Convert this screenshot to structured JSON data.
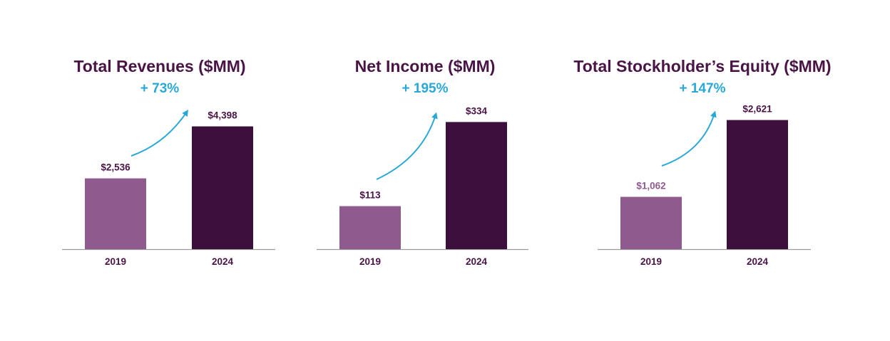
{
  "colors": {
    "title": "#4a1446",
    "growth": "#29a8d8",
    "bar_2019": "#8f5a8e",
    "bar_2024": "#3d0f3d",
    "label_dark": "#4a1446",
    "label_light": "#8f5a8e",
    "axis": "#9a9a9a"
  },
  "chart_data": [
    {
      "type": "bar",
      "title": "Total Revenues ($MM)",
      "growth": "+ 73%",
      "categories": [
        "2019",
        "2024"
      ],
      "values": [
        2536,
        4398
      ],
      "value_labels": [
        "$2,536",
        "$4,398"
      ],
      "xlabel": "",
      "ylabel": "",
      "ylim": [
        0,
        5100
      ]
    },
    {
      "type": "bar",
      "title": "Net Income ($MM)",
      "growth": "+ 195%",
      "categories": [
        "2019",
        "2024"
      ],
      "values": [
        113,
        334
      ],
      "value_labels": [
        "$113",
        "$334"
      ],
      "xlabel": "",
      "ylabel": "",
      "ylim": [
        0,
        374
      ]
    },
    {
      "type": "bar",
      "title": "Total Stockholder’s Equity ($MM)",
      "growth": "+ 147%",
      "categories": [
        "2019",
        "2024"
      ],
      "values": [
        1062,
        2621
      ],
      "value_labels": [
        "$1,062",
        "$2,621"
      ],
      "xlabel": "",
      "ylabel": "",
      "ylim": [
        0,
        2890
      ]
    }
  ]
}
